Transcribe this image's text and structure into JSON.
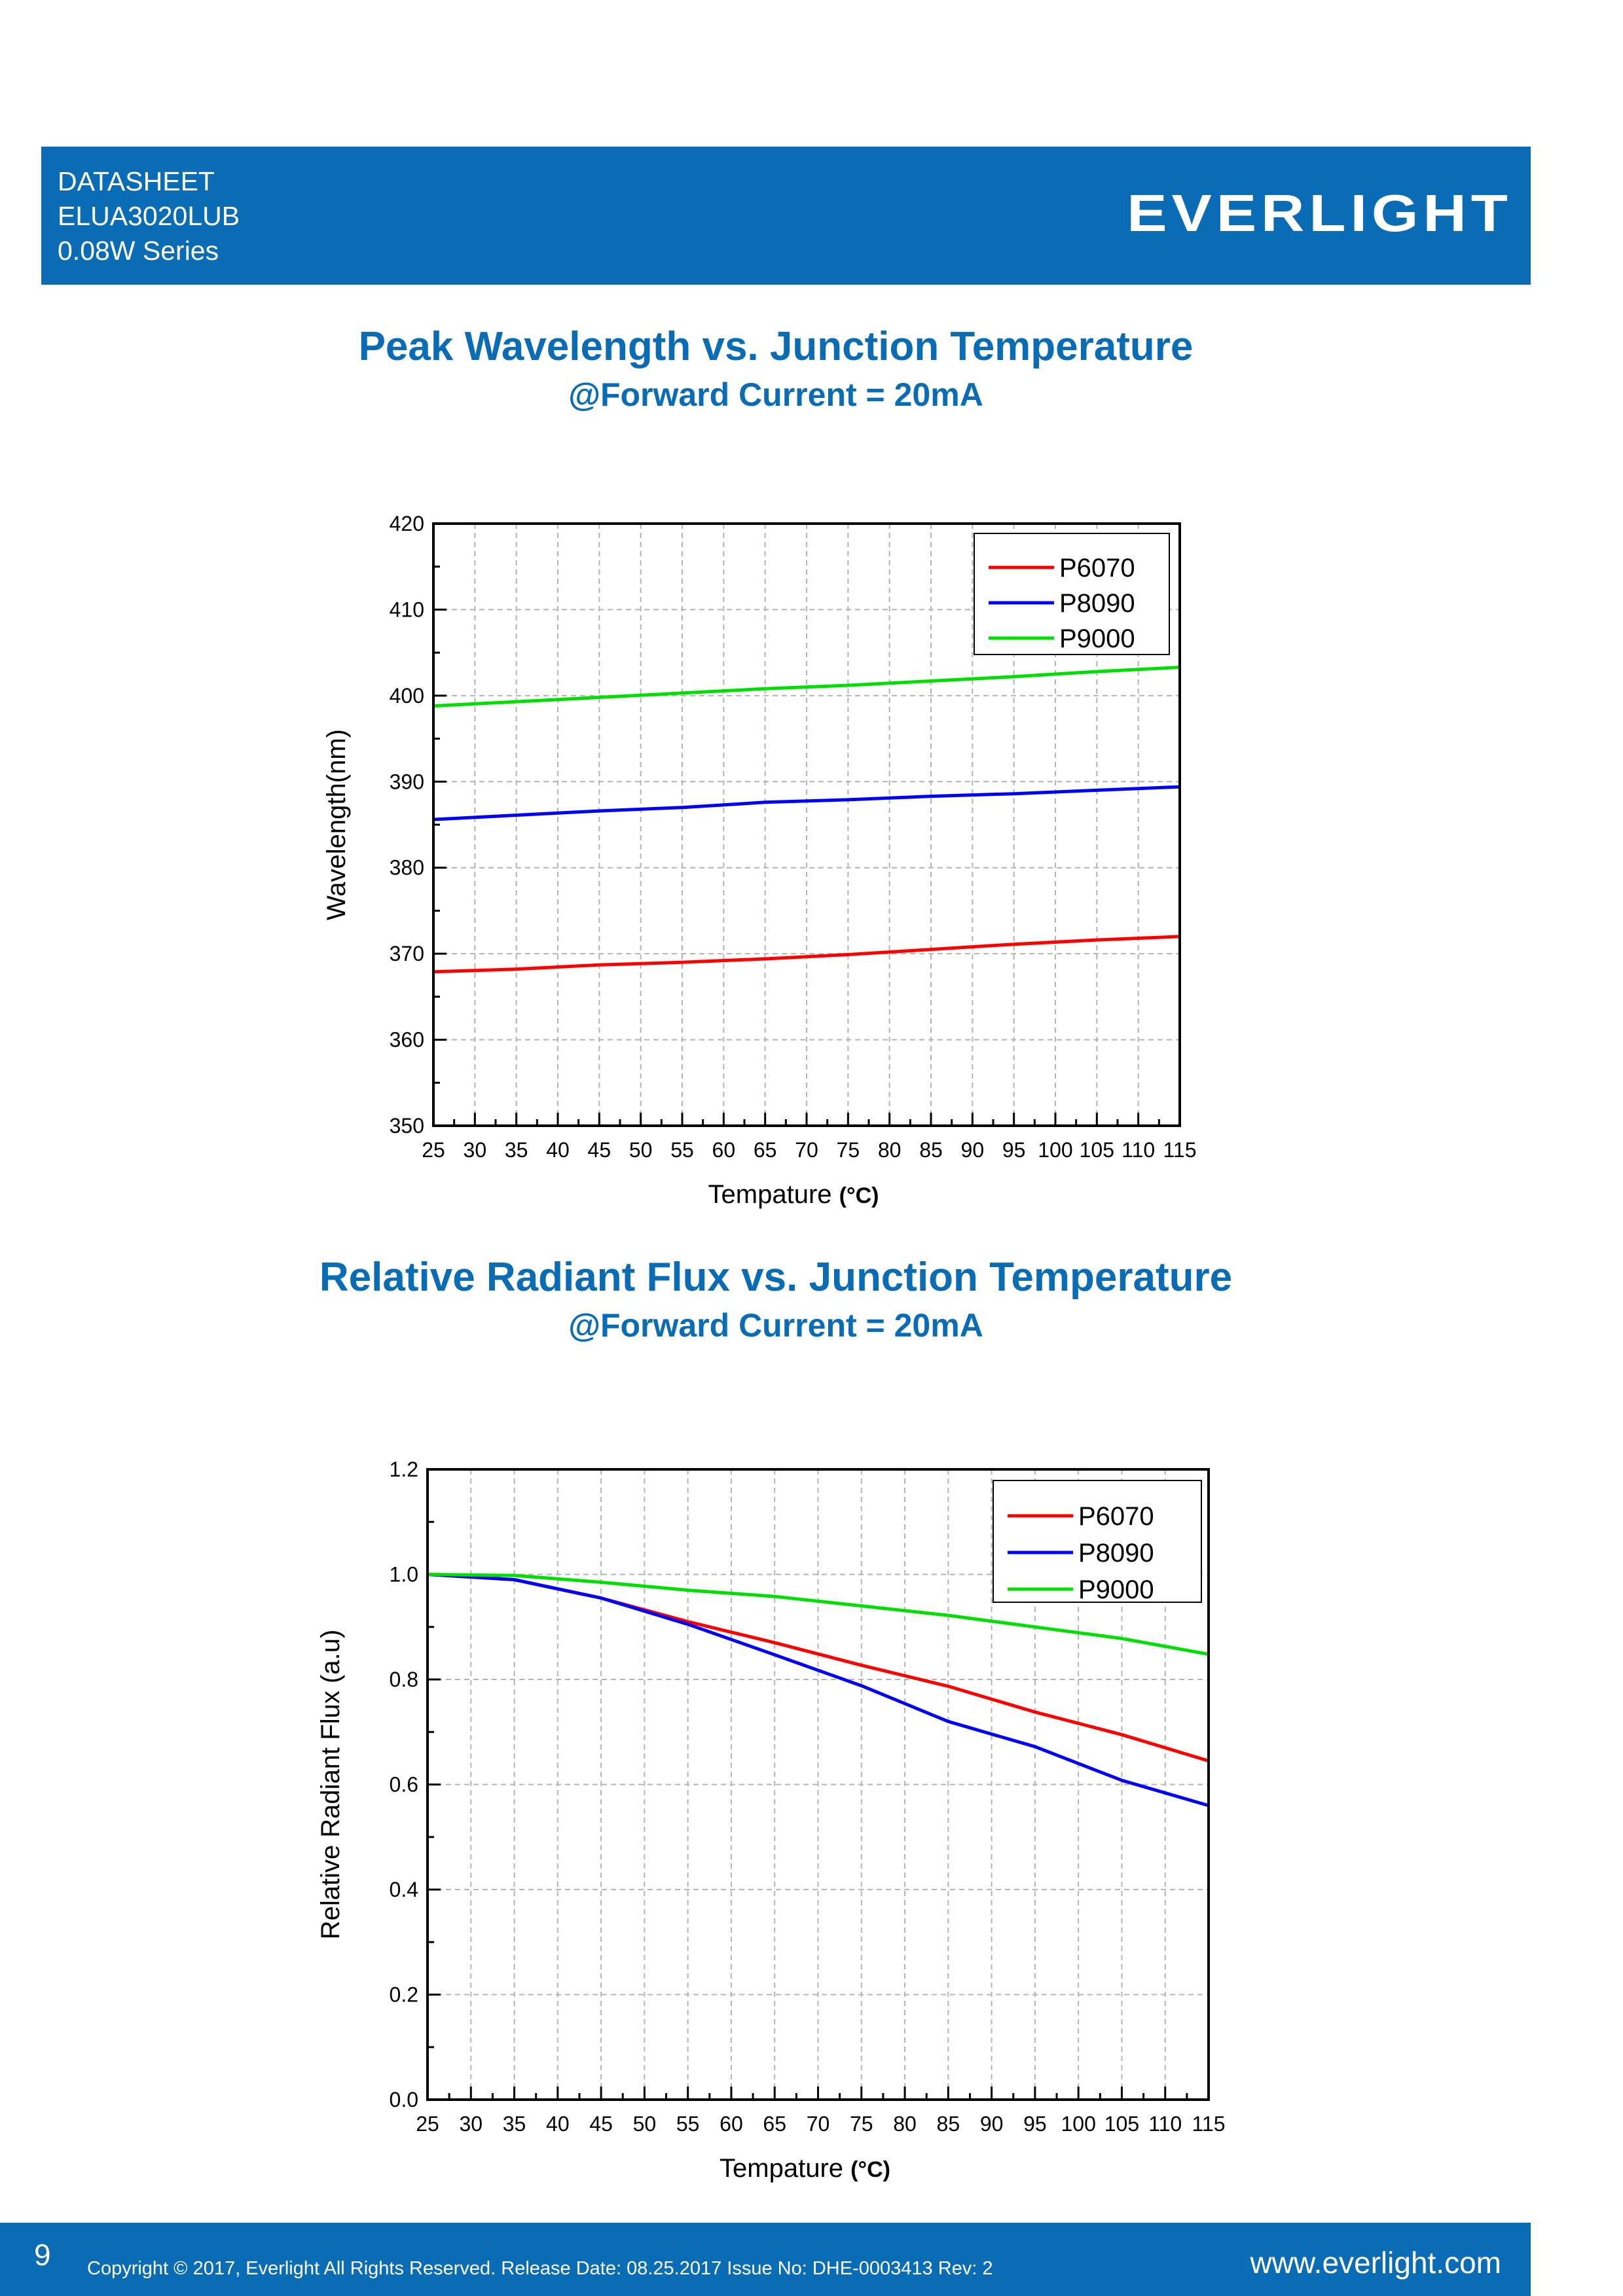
{
  "header": {
    "line1": "DATASHEET",
    "line2": "ELUA3020LUB",
    "line3": "0.08W Series",
    "logo": "EVERLIGHT",
    "color": "#0a6cb5"
  },
  "charts_text": [
    {
      "title": "Peak Wavelength vs. Junction Temperature",
      "subtitle": "@Forward Current = 20mA"
    },
    {
      "title": "Relative Radiant Flux vs. Junction Temperature",
      "subtitle": "@Forward Current = 20mA"
    }
  ],
  "chart_data": [
    {
      "type": "line",
      "title": "Peak Wavelength vs. Junction Temperature",
      "subtitle": "@Forward Current = 20mA",
      "xlabel": "Tempature",
      "xunit": "(°C)",
      "ylabel": "Wavelength(nm)",
      "xlim": [
        25,
        115
      ],
      "ylim": [
        350,
        420
      ],
      "xticks": [
        25,
        30,
        35,
        40,
        45,
        50,
        55,
        60,
        65,
        70,
        75,
        80,
        85,
        90,
        95,
        100,
        105,
        110,
        115
      ],
      "yticks": [
        350,
        360,
        370,
        380,
        390,
        400,
        410,
        420
      ],
      "grid": true,
      "legend": "top-right",
      "x": [
        25,
        35,
        45,
        55,
        65,
        75,
        85,
        95,
        105,
        115
      ],
      "series": [
        {
          "name": "P6070",
          "color": "#ff0000",
          "values": [
            367.9,
            368.2,
            368.7,
            369.0,
            369.4,
            369.9,
            370.5,
            371.1,
            371.6,
            372.0
          ]
        },
        {
          "name": "P8090",
          "color": "#0000ff",
          "values": [
            385.6,
            386.1,
            386.6,
            387.0,
            387.6,
            387.9,
            388.3,
            388.6,
            389.0,
            389.4
          ]
        },
        {
          "name": "P9000",
          "color": "#00e000",
          "values": [
            398.8,
            399.3,
            399.8,
            400.3,
            400.8,
            401.2,
            401.7,
            402.2,
            402.8,
            403.3
          ]
        }
      ]
    },
    {
      "type": "line",
      "title": "Relative Radiant Flux vs. Junction Temperature",
      "subtitle": "@Forward Current = 20mA",
      "xlabel": "Tempature",
      "xunit": "(°C)",
      "ylabel": "Relative Radiant Flux (a.u)",
      "xlim": [
        25,
        115
      ],
      "ylim": [
        0.0,
        1.2
      ],
      "xticks": [
        25,
        30,
        35,
        40,
        45,
        50,
        55,
        60,
        65,
        70,
        75,
        80,
        85,
        90,
        95,
        100,
        105,
        110,
        115
      ],
      "yticks": [
        0.0,
        0.2,
        0.4,
        0.6,
        0.8,
        1.0,
        1.2
      ],
      "grid": true,
      "legend": "top-right",
      "x": [
        25,
        35,
        45,
        55,
        65,
        75,
        85,
        95,
        105,
        115
      ],
      "series": [
        {
          "name": "P6070",
          "color": "#ff0000",
          "values": [
            1.0,
            0.99,
            0.955,
            0.91,
            0.87,
            0.827,
            0.787,
            0.738,
            0.695,
            0.645
          ]
        },
        {
          "name": "P8090",
          "color": "#0000ff",
          "values": [
            1.0,
            0.99,
            0.955,
            0.905,
            0.847,
            0.788,
            0.72,
            0.672,
            0.608,
            0.56
          ]
        },
        {
          "name": "P9000",
          "color": "#00e000",
          "values": [
            1.0,
            0.998,
            0.985,
            0.97,
            0.958,
            0.94,
            0.922,
            0.9,
            0.878,
            0.848
          ]
        }
      ]
    }
  ],
  "footer": {
    "page": "9",
    "copyright": "Copyright © 2017, Everlight All Rights Reserved. Release Date: 08.25.2017 Issue No: DHE-0003413 Rev: 2",
    "website": "www.everlight.com"
  }
}
